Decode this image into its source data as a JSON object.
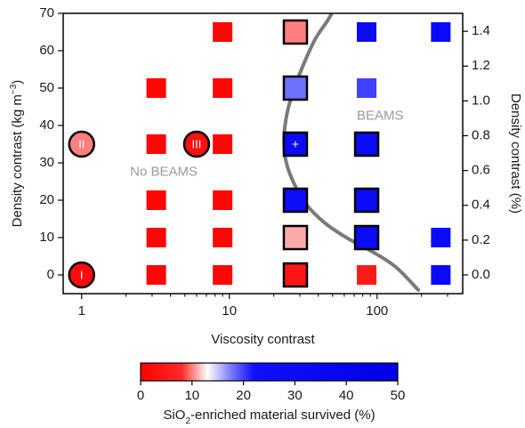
{
  "chart_data": {
    "type": "scatter",
    "xlabel": "Viscosity contrast",
    "ylabel_left": [
      "Density contrast (kg m",
      "−3",
      ")"
    ],
    "ylabel_right": "Density contrast (%)",
    "x_scale": "log",
    "xlim": [
      0.75,
      380
    ],
    "ylim": [
      -5,
      70
    ],
    "x_ticks": [
      1,
      10,
      100
    ],
    "x_tick_labels": [
      "1",
      "10",
      "100"
    ],
    "y_ticks": [
      0,
      10,
      20,
      30,
      40,
      50,
      60,
      70
    ],
    "y_tick_labels": [
      "0",
      "10",
      "20",
      "30",
      "40",
      "50",
      "60",
      "70"
    ],
    "y2_ticks": [
      0.0,
      0.2,
      0.4,
      0.6,
      0.8,
      1.0,
      1.2,
      1.4
    ],
    "y2_tick_labels": [
      "0.0",
      "0.2",
      "0.4",
      "0.6",
      "0.8",
      "1.0",
      "1.2",
      "1.4"
    ],
    "y2_per_y": 0.02147,
    "region_labels": [
      {
        "text": "No BEAMS",
        "x": 3.6,
        "y": 27.5
      },
      {
        "text": "BEAMS",
        "x": 105,
        "y": 42.5
      }
    ],
    "boundary_curve": {
      "color": "#7a7a7a",
      "points": [
        [
          190,
          -4
        ],
        [
          135,
          2
        ],
        [
          95,
          6
        ],
        [
          62,
          10
        ],
        [
          44,
          14
        ],
        [
          33,
          19
        ],
        [
          27,
          25
        ],
        [
          24,
          31
        ],
        [
          23.5,
          37
        ],
        [
          24.5,
          43
        ],
        [
          27,
          49
        ],
        [
          31.5,
          56
        ],
        [
          38,
          63
        ],
        [
          47,
          68.5
        ],
        [
          52,
          72
        ]
      ]
    },
    "colorbar": {
      "label_parts": [
        "SiO",
        "2",
        "-enriched material survived (%)"
      ],
      "min": 0,
      "max": 50,
      "ticks": [
        0,
        10,
        20,
        30,
        40,
        50
      ],
      "tick_labels": [
        "0",
        "10",
        "20",
        "30",
        "40",
        "50"
      ],
      "stops": [
        {
          "v": 0,
          "color": "#ff0000"
        },
        {
          "v": 8,
          "color": "#ff2a2a"
        },
        {
          "v": 13,
          "color": "#ffffff"
        },
        {
          "v": 18,
          "color": "#7070ff"
        },
        {
          "v": 22,
          "color": "#1010ff"
        },
        {
          "v": 50,
          "color": "#0000e6"
        }
      ]
    },
    "points": [
      {
        "x": 1,
        "y": 0,
        "value": 2,
        "shape": "circle",
        "label": "I"
      },
      {
        "x": 1,
        "y": 35,
        "value": 10,
        "shape": "circle",
        "label": "II"
      },
      {
        "x": 6,
        "y": 35,
        "value": 3,
        "shape": "circle",
        "label": "III"
      },
      {
        "x": 3.2,
        "y": 0,
        "value": 1,
        "shape": "square"
      },
      {
        "x": 3.2,
        "y": 10,
        "value": 1,
        "shape": "square"
      },
      {
        "x": 3.2,
        "y": 20,
        "value": 1,
        "shape": "square"
      },
      {
        "x": 3.2,
        "y": 35,
        "value": 1,
        "shape": "square"
      },
      {
        "x": 3.2,
        "y": 50,
        "value": 1,
        "shape": "square"
      },
      {
        "x": 9,
        "y": 0,
        "value": 1,
        "shape": "square"
      },
      {
        "x": 9,
        "y": 10,
        "value": 1,
        "shape": "square"
      },
      {
        "x": 9,
        "y": 20,
        "value": 1,
        "shape": "square"
      },
      {
        "x": 9,
        "y": 35,
        "value": 1,
        "shape": "square"
      },
      {
        "x": 9,
        "y": 50,
        "value": 1,
        "shape": "square"
      },
      {
        "x": 9,
        "y": 65,
        "value": 1,
        "shape": "square"
      },
      {
        "x": 28,
        "y": 0,
        "value": 4,
        "shape": "square",
        "outlined": true
      },
      {
        "x": 28,
        "y": 10,
        "value": 11,
        "shape": "square",
        "outlined": true
      },
      {
        "x": 28,
        "y": 20,
        "value": 28,
        "shape": "square",
        "outlined": true
      },
      {
        "x": 28,
        "y": 35,
        "value": 30,
        "shape": "square",
        "outlined": true,
        "label": "+"
      },
      {
        "x": 28,
        "y": 50,
        "value": 18,
        "shape": "square",
        "outlined": true
      },
      {
        "x": 28,
        "y": 65,
        "value": 10,
        "shape": "square",
        "outlined": true
      },
      {
        "x": 85,
        "y": 0,
        "value": 5,
        "shape": "square"
      },
      {
        "x": 85,
        "y": 10,
        "value": 30,
        "shape": "square",
        "outlined": true
      },
      {
        "x": 85,
        "y": 20,
        "value": 30,
        "shape": "square",
        "outlined": true
      },
      {
        "x": 85,
        "y": 35,
        "value": 30,
        "shape": "square",
        "outlined": true
      },
      {
        "x": 85,
        "y": 50,
        "value": 20,
        "shape": "square"
      },
      {
        "x": 85,
        "y": 65,
        "value": 30,
        "shape": "square"
      },
      {
        "x": 270,
        "y": 0,
        "value": 30,
        "shape": "square"
      },
      {
        "x": 270,
        "y": 10,
        "value": 30,
        "shape": "square"
      },
      {
        "x": 270,
        "y": 65,
        "value": 30,
        "shape": "square"
      }
    ]
  }
}
